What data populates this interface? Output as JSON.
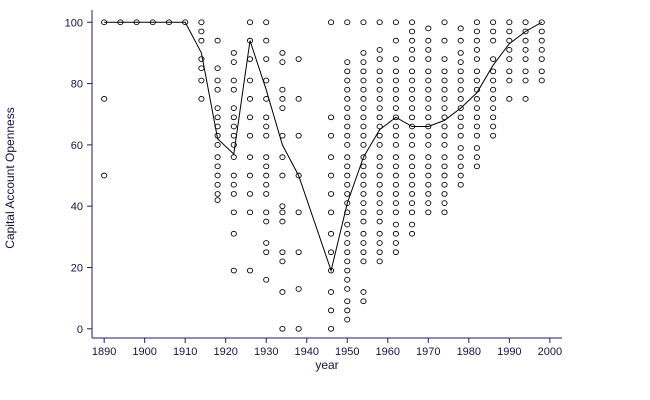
{
  "chart_data": {
    "type": "scatter",
    "title": "",
    "xlabel": "year",
    "ylabel": "Capital Account Openness",
    "xlim": [
      1887,
      2003
    ],
    "ylim": [
      -3,
      104
    ],
    "xticks": [
      1890,
      1900,
      1910,
      1920,
      1930,
      1940,
      1950,
      1960,
      1970,
      1980,
      1990,
      2000
    ],
    "yticks": [
      0,
      20,
      40,
      60,
      80,
      100
    ],
    "grid": false,
    "legend": "none",
    "colors": {
      "marker": "#000000",
      "line": "#000000",
      "axis": "#2a1a5e"
    },
    "scatter_columns": [
      {
        "x": 1890,
        "y": [
          100,
          75,
          50
        ]
      },
      {
        "x": 1894,
        "y": [
          100
        ]
      },
      {
        "x": 1898,
        "y": [
          100
        ]
      },
      {
        "x": 1902,
        "y": [
          100
        ]
      },
      {
        "x": 1906,
        "y": [
          100
        ]
      },
      {
        "x": 1910,
        "y": [
          100
        ]
      },
      {
        "x": 1914,
        "y": [
          100,
          97,
          94,
          88,
          85,
          81,
          75
        ]
      },
      {
        "x": 1918,
        "y": [
          94,
          85,
          81,
          78,
          72,
          69,
          66,
          63,
          60,
          56,
          53,
          50,
          47,
          44,
          42
        ]
      },
      {
        "x": 1922,
        "y": [
          90,
          87,
          81,
          78,
          72,
          69,
          66,
          63,
          60,
          56,
          50,
          47,
          44,
          38,
          31,
          19
        ]
      },
      {
        "x": 1926,
        "y": [
          100,
          94,
          88,
          81,
          75,
          69,
          63,
          56,
          50,
          44,
          38,
          19
        ]
      },
      {
        "x": 1930,
        "y": [
          100,
          94,
          88,
          81,
          75,
          69,
          66,
          63,
          56,
          53,
          50,
          47,
          44,
          38,
          35,
          28,
          25,
          16
        ]
      },
      {
        "x": 1934,
        "y": [
          90,
          87,
          78,
          75,
          72,
          63,
          56,
          50,
          40,
          38,
          35,
          25,
          22,
          12,
          0
        ]
      },
      {
        "x": 1938,
        "y": [
          88,
          75,
          63,
          50,
          38,
          25,
          13,
          0
        ]
      },
      {
        "x": 1946,
        "y": [
          100,
          69,
          63,
          56,
          50,
          44,
          38,
          31,
          25,
          19,
          12,
          6,
          0
        ]
      },
      {
        "x": 1950,
        "y": [
          100,
          87,
          84,
          81,
          78,
          75,
          72,
          69,
          66,
          63,
          60,
          56,
          53,
          50,
          47,
          44,
          41,
          38,
          34,
          31,
          28,
          25,
          22,
          19,
          16,
          13,
          9,
          6,
          3
        ]
      },
      {
        "x": 1954,
        "y": [
          100,
          90,
          87,
          84,
          81,
          78,
          75,
          72,
          69,
          66,
          63,
          60,
          56,
          53,
          50,
          47,
          44,
          41,
          38,
          35,
          31,
          28,
          25,
          22,
          12,
          9
        ]
      },
      {
        "x": 1958,
        "y": [
          100,
          91,
          88,
          84,
          81,
          78,
          75,
          72,
          69,
          66,
          63,
          60,
          56,
          53,
          50,
          47,
          44,
          41,
          38,
          35,
          31,
          28,
          25,
          22
        ]
      },
      {
        "x": 1962,
        "y": [
          100,
          94,
          88,
          84,
          81,
          78,
          75,
          72,
          69,
          66,
          63,
          60,
          56,
          53,
          50,
          47,
          44,
          41,
          38,
          34,
          31,
          28,
          25
        ]
      },
      {
        "x": 1966,
        "y": [
          100,
          97,
          94,
          91,
          88,
          84,
          81,
          78,
          75,
          72,
          69,
          66,
          63,
          60,
          56,
          53,
          50,
          47,
          44,
          41,
          38,
          34,
          31
        ]
      },
      {
        "x": 1970,
        "y": [
          98,
          94,
          91,
          88,
          84,
          81,
          78,
          75,
          72,
          69,
          66,
          63,
          60,
          56,
          53,
          50,
          47,
          44,
          41,
          38
        ]
      },
      {
        "x": 1974,
        "y": [
          100,
          94,
          88,
          84,
          81,
          78,
          75,
          72,
          69,
          66,
          63,
          60,
          56,
          53,
          50,
          47,
          44,
          41,
          38
        ]
      },
      {
        "x": 1978,
        "y": [
          98,
          94,
          90,
          87,
          84,
          81,
          78,
          75,
          72,
          69,
          66,
          63,
          59,
          56,
          53,
          50,
          47
        ]
      },
      {
        "x": 1982,
        "y": [
          100,
          97,
          94,
          91,
          88,
          84,
          81,
          78,
          75,
          72,
          69,
          66,
          63,
          59,
          56,
          53
        ]
      },
      {
        "x": 1986,
        "y": [
          100,
          97,
          94,
          88,
          84,
          81,
          78,
          75,
          72,
          69,
          66,
          63
        ]
      },
      {
        "x": 1990,
        "y": [
          100,
          97,
          94,
          91,
          88,
          84,
          81,
          75
        ]
      },
      {
        "x": 1994,
        "y": [
          100,
          97,
          94,
          91,
          88,
          84,
          81,
          75
        ]
      },
      {
        "x": 1998,
        "y": [
          100,
          97,
          94,
          91,
          88,
          84,
          81
        ]
      }
    ],
    "line": {
      "x": [
        1890,
        1910,
        1914,
        1918,
        1922,
        1926,
        1930,
        1934,
        1938,
        1946,
        1950,
        1954,
        1958,
        1962,
        1966,
        1970,
        1974,
        1978,
        1982,
        1986,
        1990,
        1994,
        1998
      ],
      "y": [
        100,
        100,
        90,
        62,
        57,
        94,
        78,
        60,
        50,
        19,
        41,
        56,
        65,
        69,
        66,
        66,
        68,
        72,
        77,
        86,
        93,
        97,
        100
      ]
    }
  }
}
